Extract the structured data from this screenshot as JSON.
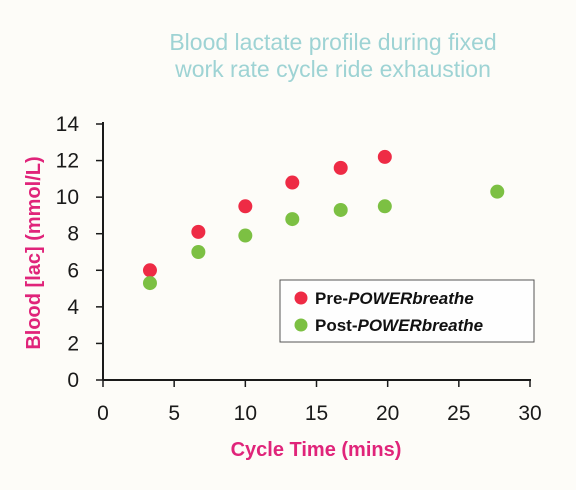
{
  "colors": {
    "title": "#9ed3d4",
    "axis_label": "#e0247a",
    "pre_series": "#ee2b45",
    "post_series": "#7cc043",
    "axis": "#1a1a1a"
  },
  "chart_data": {
    "type": "scatter",
    "title": [
      "Blood lactate profile during fixed",
      "work rate cycle ride exhaustion"
    ],
    "xlabel": "Cycle Time (mins)",
    "ylabel": "Blood [lac] (mmol/L)",
    "xlim": [
      0,
      30
    ],
    "ylim": [
      0,
      14
    ],
    "xticks": [
      0,
      5,
      10,
      15,
      20,
      25,
      30
    ],
    "yticks": [
      0,
      2,
      4,
      6,
      8,
      10,
      12,
      14
    ],
    "grid": false,
    "legend_position": "bottom-right",
    "series": [
      {
        "legend_prefix": "Pre-",
        "legend_emph": "POWERbreathe",
        "color": "#ee2b45",
        "x": [
          3.3,
          6.7,
          10.0,
          13.3,
          16.7,
          19.8
        ],
        "y": [
          6.0,
          8.1,
          9.5,
          10.8,
          11.6,
          12.2
        ]
      },
      {
        "legend_prefix": "Post-",
        "legend_emph": "POWERbreathe",
        "color": "#7cc043",
        "x": [
          3.3,
          6.7,
          10.0,
          13.3,
          16.7,
          19.8,
          27.7
        ],
        "y": [
          5.3,
          7.0,
          7.9,
          8.8,
          9.3,
          9.5,
          10.3
        ]
      }
    ]
  }
}
